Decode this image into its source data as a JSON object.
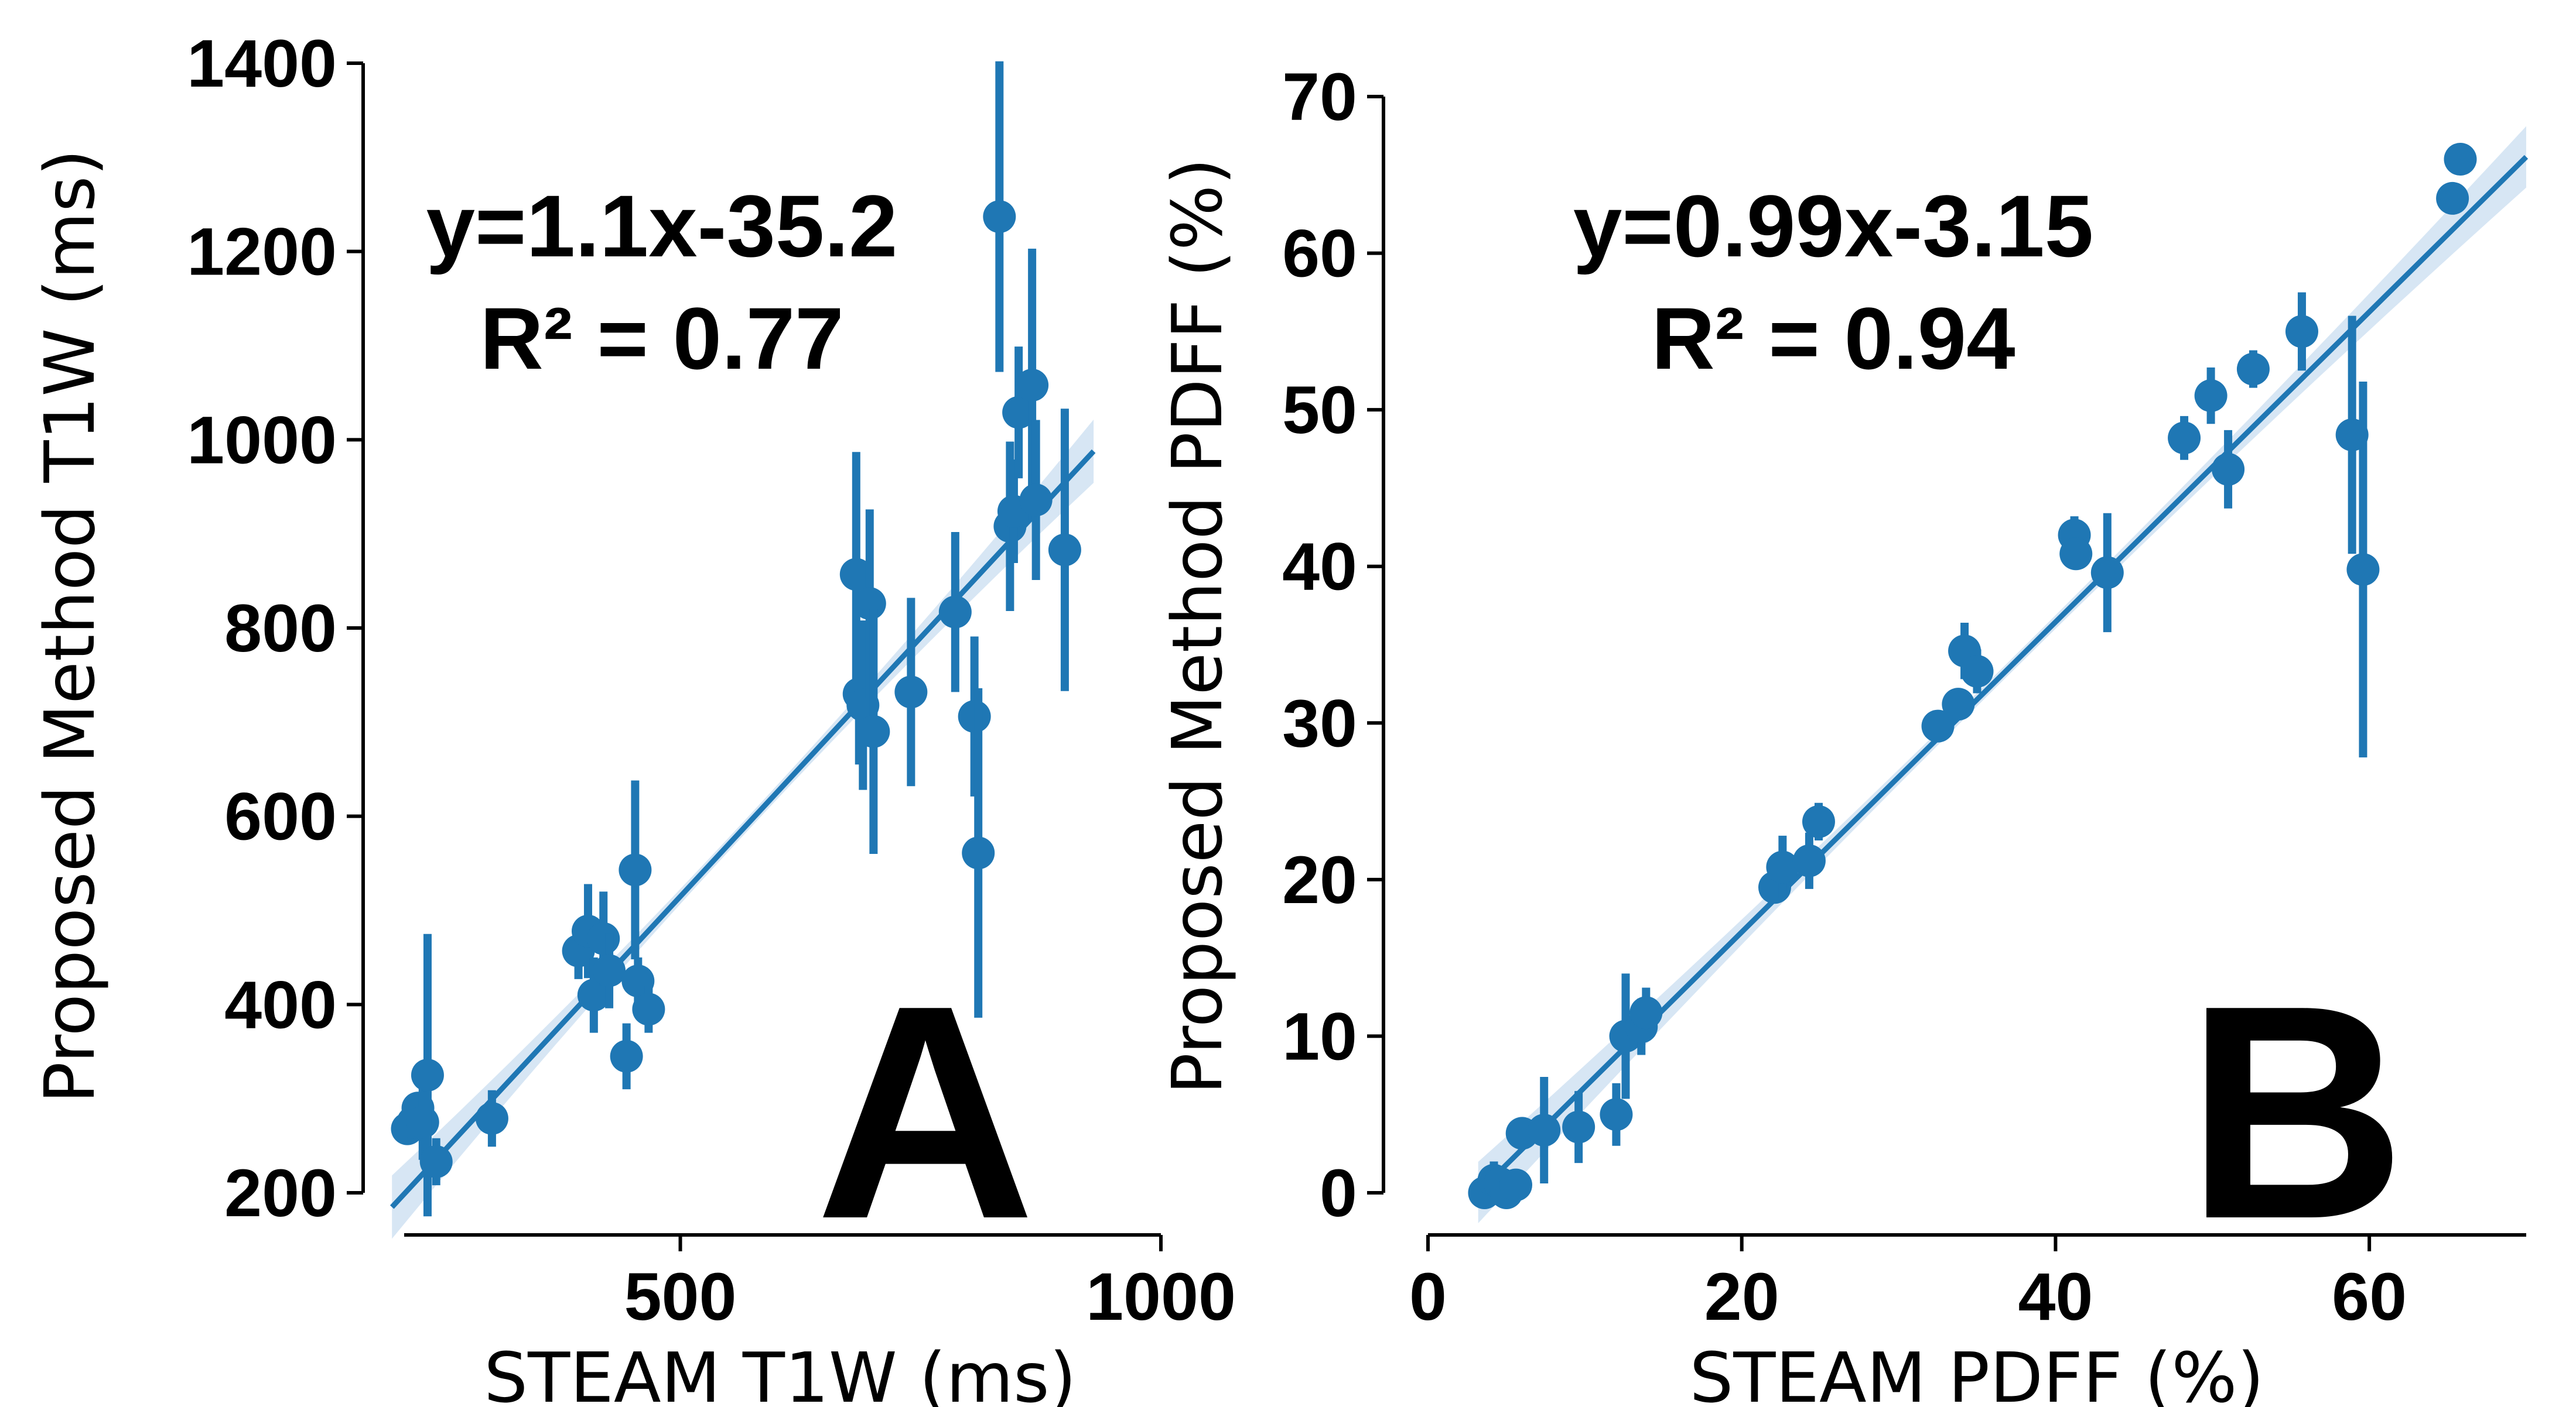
{
  "style": {
    "series_color": "#1f77b4",
    "band_color": "#c6dbef",
    "axis_color": "#000000"
  },
  "chart_data": [
    {
      "type": "scatter",
      "panel_label": "A",
      "xlabel": "STEAM T1W (ms)",
      "ylabel": "Proposed Method T1W (ms)",
      "xlim": [
        170,
        1000
      ],
      "ylim": [
        200,
        1400
      ],
      "xticks": [
        500,
        1000
      ],
      "yticks": [
        200,
        400,
        600,
        800,
        1000,
        1200,
        1400
      ],
      "equation": "y=1.1x-35.2",
      "r2_label": "R² = 0.77",
      "fit": {
        "slope": 1.1,
        "intercept": -35.2,
        "x_range": [
          200,
          930
        ]
      },
      "points": [
        {
          "x": 216,
          "y": 268,
          "err": 10
        },
        {
          "x": 222,
          "y": 275,
          "err": 20
        },
        {
          "x": 227,
          "y": 290,
          "err": 15
        },
        {
          "x": 232,
          "y": 275,
          "err": 40
        },
        {
          "x": 237,
          "y": 325,
          "err": 150
        },
        {
          "x": 246,
          "y": 233,
          "err": 25
        },
        {
          "x": 304,
          "y": 279,
          "err": 30
        },
        {
          "x": 394,
          "y": 457,
          "err": 30
        },
        {
          "x": 404,
          "y": 478,
          "err": 50
        },
        {
          "x": 410,
          "y": 410,
          "err": 40
        },
        {
          "x": 420,
          "y": 470,
          "err": 50
        },
        {
          "x": 426,
          "y": 436,
          "err": 40
        },
        {
          "x": 444,
          "y": 345,
          "err": 35
        },
        {
          "x": 453,
          "y": 543,
          "err": 95
        },
        {
          "x": 456,
          "y": 425,
          "err": 25
        },
        {
          "x": 467,
          "y": 395,
          "err": 25
        },
        {
          "x": 683,
          "y": 857,
          "err": 130
        },
        {
          "x": 686,
          "y": 730,
          "err": 75
        },
        {
          "x": 690,
          "y": 718,
          "err": 90
        },
        {
          "x": 697,
          "y": 826,
          "err": 100
        },
        {
          "x": 701,
          "y": 690,
          "err": 130
        },
        {
          "x": 740,
          "y": 732,
          "err": 100
        },
        {
          "x": 786,
          "y": 817,
          "err": 85
        },
        {
          "x": 806,
          "y": 706,
          "err": 85
        },
        {
          "x": 810,
          "y": 561,
          "err": 175
        },
        {
          "x": 832,
          "y": 1237,
          "err": 165
        },
        {
          "x": 843,
          "y": 908,
          "err": 90
        },
        {
          "x": 847,
          "y": 924,
          "err": 55
        },
        {
          "x": 852,
          "y": 1029,
          "err": 70
        },
        {
          "x": 866,
          "y": 1058,
          "err": 145
        },
        {
          "x": 870,
          "y": 936,
          "err": 85
        },
        {
          "x": 900,
          "y": 883,
          "err": 150
        }
      ]
    },
    {
      "type": "scatter",
      "panel_label": "B",
      "xlabel": "STEAM PDFF (%)",
      "ylabel": "Proposed Method PDFF (%)",
      "xlim": [
        0,
        70
      ],
      "ylim": [
        0,
        70
      ],
      "xticks": [
        0,
        20,
        40,
        60
      ],
      "yticks": [
        0,
        10,
        20,
        30,
        40,
        50,
        60,
        70
      ],
      "equation": "y=0.99x-3.15",
      "r2_label": "R² = 0.94",
      "fit": {
        "slope": 0.99,
        "intercept": -3.15,
        "x_range": [
          3.2,
          70
        ]
      },
      "points": [
        {
          "x": 3.6,
          "y": 0.0,
          "err": 0.6
        },
        {
          "x": 4.2,
          "y": 0.8,
          "err": 1.2
        },
        {
          "x": 4.6,
          "y": 0.6,
          "err": 1.0
        },
        {
          "x": 5.0,
          "y": 0.0,
          "err": 0.6
        },
        {
          "x": 5.6,
          "y": 0.5,
          "err": 0.6
        },
        {
          "x": 6.0,
          "y": 3.8,
          "err": 1.0
        },
        {
          "x": 7.4,
          "y": 4.0,
          "err": 3.4
        },
        {
          "x": 9.6,
          "y": 4.2,
          "err": 2.3
        },
        {
          "x": 12.0,
          "y": 5.0,
          "err": 2.0
        },
        {
          "x": 12.6,
          "y": 10.0,
          "err": 4.0
        },
        {
          "x": 13.6,
          "y": 10.6,
          "err": 1.8
        },
        {
          "x": 13.9,
          "y": 11.5,
          "err": 1.6
        },
        {
          "x": 22.1,
          "y": 19.5,
          "err": 1.0
        },
        {
          "x": 22.6,
          "y": 20.8,
          "err": 2.0
        },
        {
          "x": 24.3,
          "y": 21.2,
          "err": 1.8
        },
        {
          "x": 24.9,
          "y": 23.7,
          "err": 1.2
        },
        {
          "x": 32.5,
          "y": 29.8,
          "err": 0.8
        },
        {
          "x": 33.8,
          "y": 31.2,
          "err": 1.0
        },
        {
          "x": 34.2,
          "y": 34.6,
          "err": 1.8
        },
        {
          "x": 35.0,
          "y": 33.3,
          "err": 1.4
        },
        {
          "x": 41.2,
          "y": 42.0,
          "err": 1.2
        },
        {
          "x": 41.3,
          "y": 40.8,
          "err": 1.0
        },
        {
          "x": 43.3,
          "y": 39.6,
          "err": 3.8
        },
        {
          "x": 48.2,
          "y": 48.2,
          "err": 1.4
        },
        {
          "x": 49.9,
          "y": 50.9,
          "err": 1.8
        },
        {
          "x": 51.0,
          "y": 46.2,
          "err": 2.5
        },
        {
          "x": 52.6,
          "y": 52.6,
          "err": 1.2
        },
        {
          "x": 55.7,
          "y": 55.0,
          "err": 2.5
        },
        {
          "x": 58.9,
          "y": 48.4,
          "err": 7.6
        },
        {
          "x": 59.6,
          "y": 39.8,
          "err": 12.0
        },
        {
          "x": 65.3,
          "y": 63.5,
          "err": 0.8
        },
        {
          "x": 65.8,
          "y": 66.0,
          "err": 1.0
        }
      ]
    }
  ]
}
